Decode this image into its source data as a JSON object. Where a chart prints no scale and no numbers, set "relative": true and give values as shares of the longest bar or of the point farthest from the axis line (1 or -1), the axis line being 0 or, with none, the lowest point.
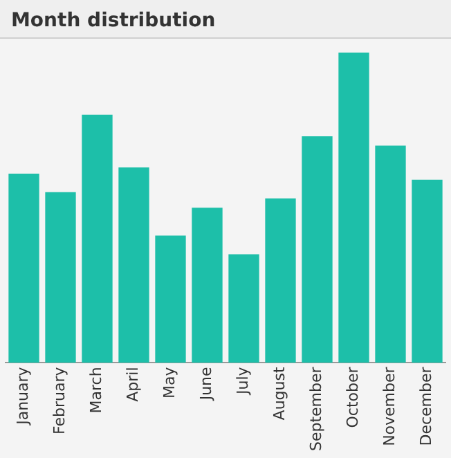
{
  "chart_data": {
    "type": "bar",
    "title": "Month distribution",
    "relative": true,
    "categories": [
      "January",
      "February",
      "March",
      "April",
      "May",
      "June",
      "July",
      "August",
      "September",
      "October",
      "November",
      "December"
    ],
    "values": [
      0.61,
      0.55,
      0.8,
      0.63,
      0.41,
      0.5,
      0.35,
      0.53,
      0.73,
      1,
      0.7,
      0.59
    ],
    "color": "#1dbfa9",
    "grid": false,
    "legend": false
  }
}
